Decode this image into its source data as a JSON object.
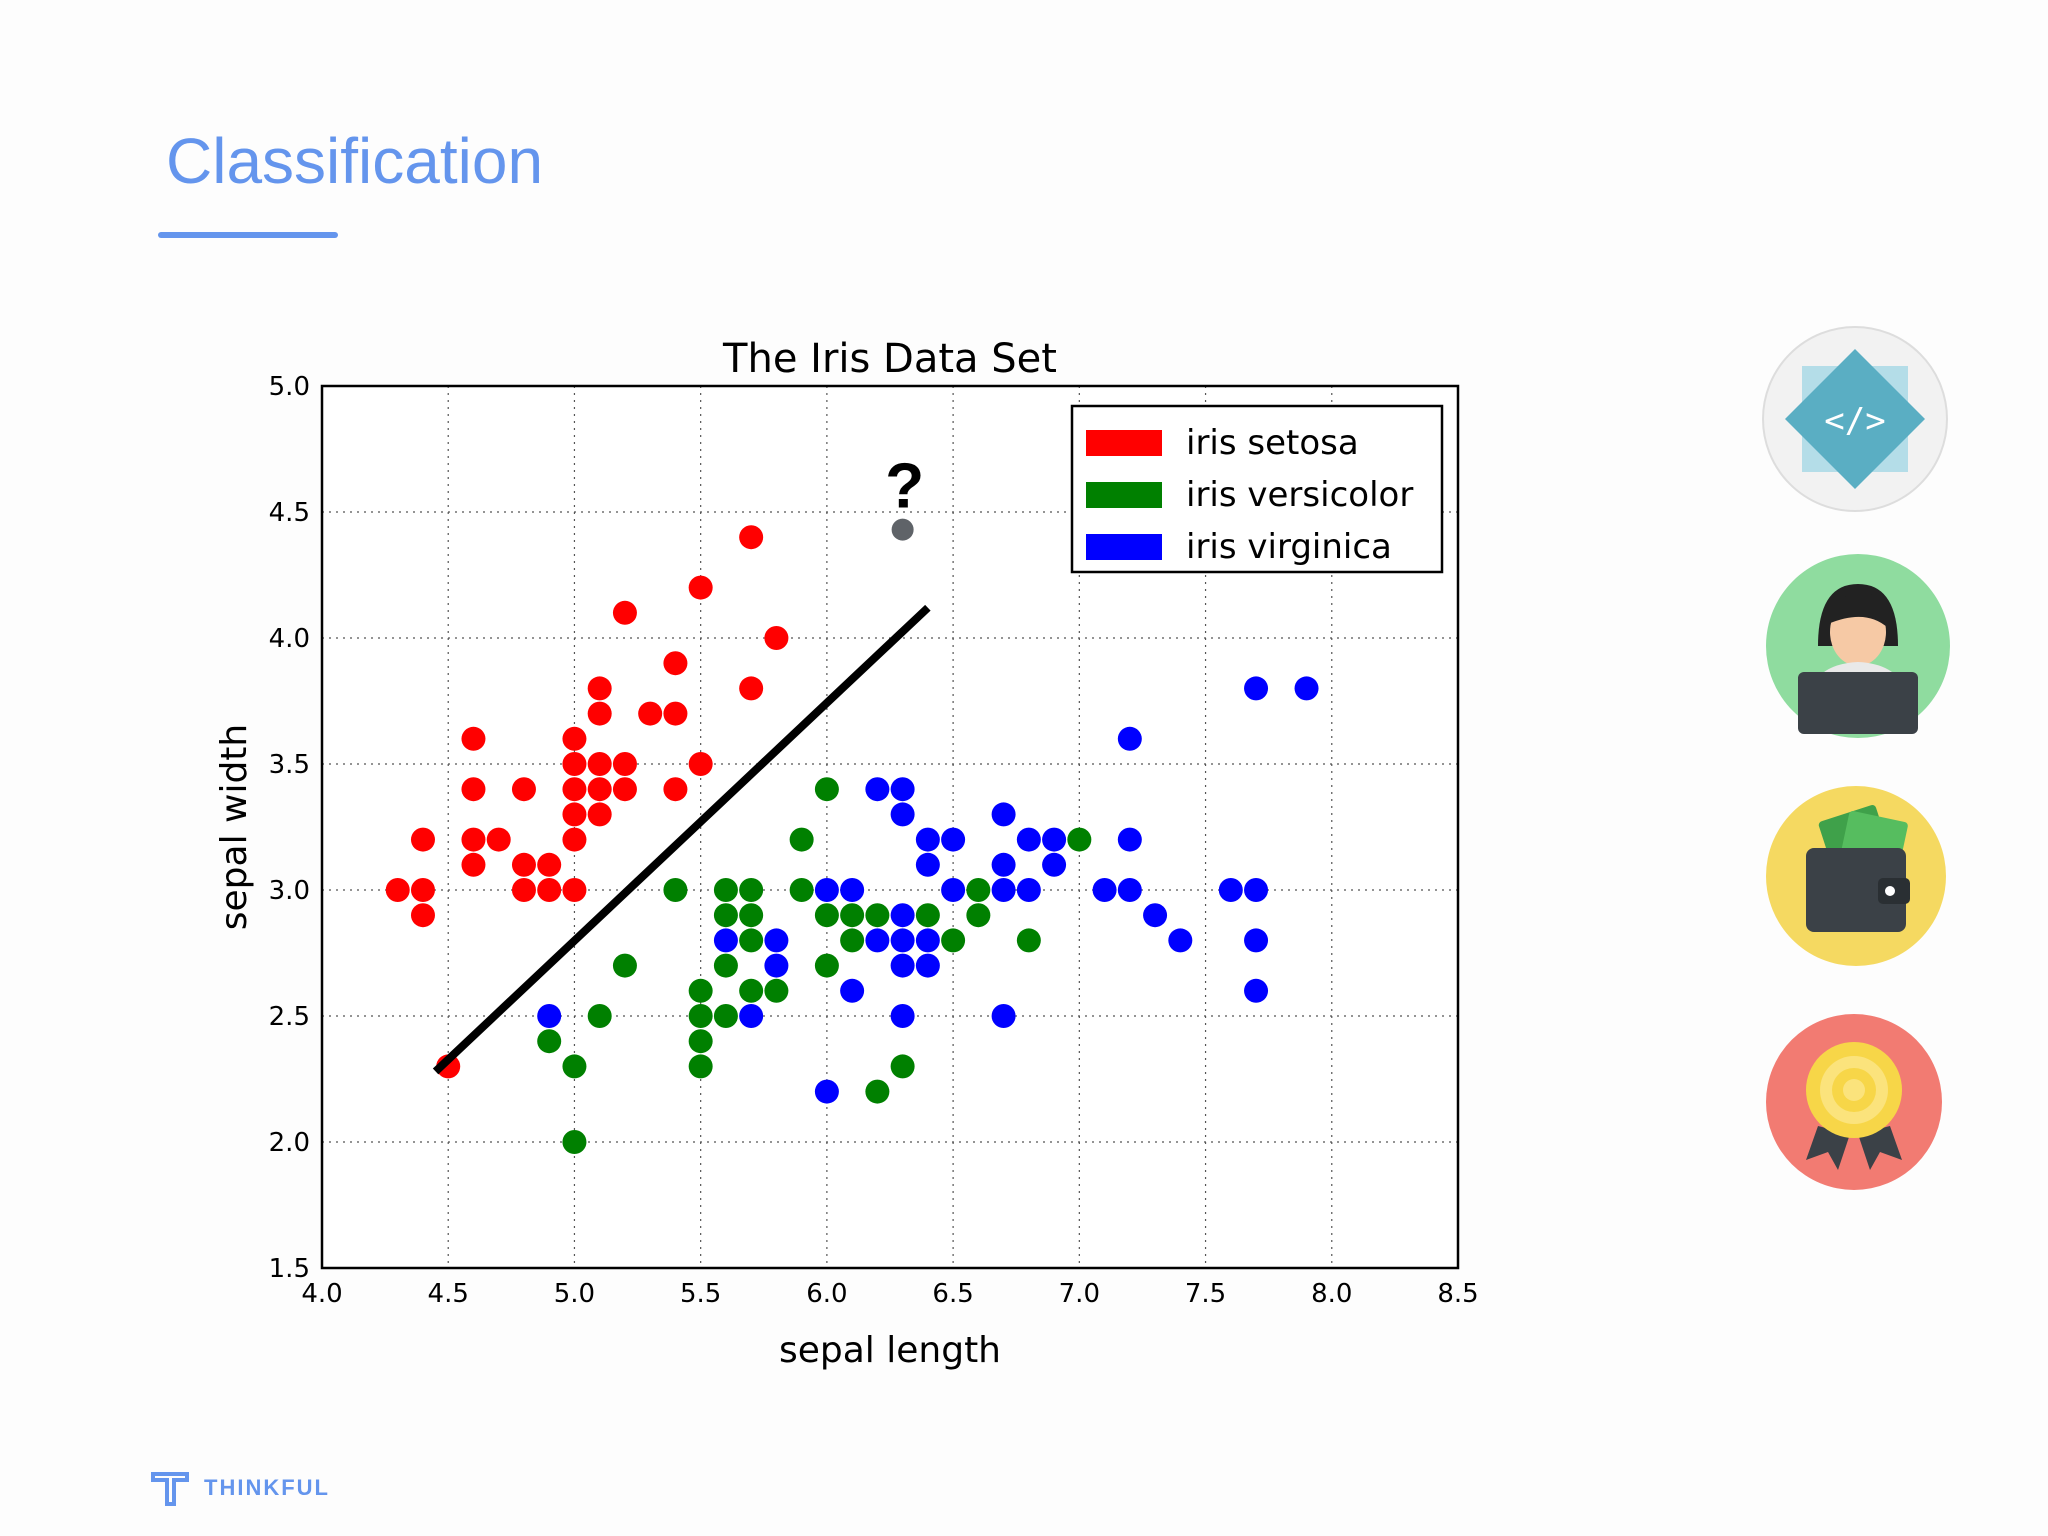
{
  "slide": {
    "title": "Classification",
    "brand": "THINKFUL",
    "accent_color": "#6495ed"
  },
  "side_icons": [
    {
      "name": "code-icon",
      "bg": "#f2f2f2"
    },
    {
      "name": "person-laptop-icon",
      "bg": "#8fdc9f"
    },
    {
      "name": "wallet-icon",
      "bg": "#f5d961"
    },
    {
      "name": "award-ribbon-icon",
      "bg": "#f27b72"
    }
  ],
  "chart_data": {
    "type": "scatter",
    "title": "The Iris Data Set",
    "xlabel": "sepal length",
    "ylabel": "sepal width",
    "xlim": [
      4.0,
      8.5
    ],
    "ylim": [
      1.5,
      5.0
    ],
    "x_ticks": [
      "4.0",
      "4.5",
      "5.0",
      "5.5",
      "6.0",
      "6.5",
      "7.0",
      "7.5",
      "8.0",
      "8.5"
    ],
    "y_ticks": [
      "1.5",
      "2.0",
      "2.5",
      "3.0",
      "3.5",
      "4.0",
      "4.5",
      "5.0"
    ],
    "grid": true,
    "legend_position": "top-right",
    "series": [
      {
        "name": "iris setosa",
        "color": "#ff0000",
        "points": [
          [
            4.3,
            3.0
          ],
          [
            4.4,
            2.9
          ],
          [
            4.4,
            3.0
          ],
          [
            4.4,
            3.2
          ],
          [
            4.5,
            2.3
          ],
          [
            4.6,
            3.1
          ],
          [
            4.6,
            3.2
          ],
          [
            4.6,
            3.4
          ],
          [
            4.6,
            3.6
          ],
          [
            4.7,
            3.2
          ],
          [
            4.8,
            3.0
          ],
          [
            4.8,
            3.4
          ],
          [
            4.8,
            3.1
          ],
          [
            4.9,
            3.0
          ],
          [
            4.9,
            3.1
          ],
          [
            5.0,
            3.0
          ],
          [
            5.0,
            3.2
          ],
          [
            5.0,
            3.3
          ],
          [
            5.0,
            3.4
          ],
          [
            5.0,
            3.5
          ],
          [
            5.0,
            3.6
          ],
          [
            5.1,
            3.3
          ],
          [
            5.1,
            3.4
          ],
          [
            5.1,
            3.5
          ],
          [
            5.1,
            3.7
          ],
          [
            5.1,
            3.8
          ],
          [
            5.2,
            3.4
          ],
          [
            5.2,
            3.5
          ],
          [
            5.2,
            4.1
          ],
          [
            5.3,
            3.7
          ],
          [
            5.4,
            3.4
          ],
          [
            5.4,
            3.7
          ],
          [
            5.4,
            3.9
          ],
          [
            5.5,
            3.5
          ],
          [
            5.5,
            4.2
          ],
          [
            5.7,
            3.8
          ],
          [
            5.7,
            4.4
          ],
          [
            5.8,
            4.0
          ]
        ]
      },
      {
        "name": "iris versicolor",
        "color": "#008000",
        "points": [
          [
            4.9,
            2.4
          ],
          [
            5.0,
            2.0
          ],
          [
            5.0,
            2.3
          ],
          [
            5.1,
            2.5
          ],
          [
            5.2,
            2.7
          ],
          [
            5.4,
            3.0
          ],
          [
            5.5,
            2.3
          ],
          [
            5.5,
            2.4
          ],
          [
            5.5,
            2.5
          ],
          [
            5.5,
            2.6
          ],
          [
            5.6,
            2.5
          ],
          [
            5.6,
            2.7
          ],
          [
            5.6,
            2.9
          ],
          [
            5.6,
            3.0
          ],
          [
            5.7,
            2.6
          ],
          [
            5.7,
            2.8
          ],
          [
            5.7,
            2.9
          ],
          [
            5.7,
            3.0
          ],
          [
            5.8,
            2.6
          ],
          [
            5.9,
            3.0
          ],
          [
            5.9,
            3.2
          ],
          [
            6.0,
            2.7
          ],
          [
            6.0,
            2.9
          ],
          [
            6.0,
            3.4
          ],
          [
            6.1,
            2.8
          ],
          [
            6.1,
            2.9
          ],
          [
            6.2,
            2.2
          ],
          [
            6.2,
            2.9
          ],
          [
            6.3,
            2.3
          ],
          [
            6.4,
            2.9
          ],
          [
            6.5,
            2.8
          ],
          [
            6.6,
            2.9
          ],
          [
            6.6,
            3.0
          ],
          [
            6.8,
            2.8
          ],
          [
            7.0,
            3.2
          ]
        ]
      },
      {
        "name": "iris virginica",
        "color": "#0000ff",
        "points": [
          [
            4.9,
            2.5
          ],
          [
            5.7,
            2.5
          ],
          [
            5.6,
            2.8
          ],
          [
            5.8,
            2.7
          ],
          [
            5.8,
            2.8
          ],
          [
            6.0,
            2.2
          ],
          [
            6.0,
            3.0
          ],
          [
            6.1,
            2.6
          ],
          [
            6.1,
            3.0
          ],
          [
            6.2,
            2.8
          ],
          [
            6.2,
            3.4
          ],
          [
            6.3,
            2.5
          ],
          [
            6.3,
            2.7
          ],
          [
            6.3,
            2.8
          ],
          [
            6.3,
            2.9
          ],
          [
            6.3,
            3.3
          ],
          [
            6.3,
            3.4
          ],
          [
            6.4,
            2.7
          ],
          [
            6.4,
            2.8
          ],
          [
            6.4,
            3.1
          ],
          [
            6.4,
            3.2
          ],
          [
            6.5,
            3.0
          ],
          [
            6.5,
            3.2
          ],
          [
            6.7,
            2.5
          ],
          [
            6.7,
            3.0
          ],
          [
            6.7,
            3.1
          ],
          [
            6.7,
            3.3
          ],
          [
            6.8,
            3.0
          ],
          [
            6.8,
            3.2
          ],
          [
            6.9,
            3.1
          ],
          [
            6.9,
            3.2
          ],
          [
            7.1,
            3.0
          ],
          [
            7.2,
            3.0
          ],
          [
            7.2,
            3.2
          ],
          [
            7.2,
            3.6
          ],
          [
            7.3,
            2.9
          ],
          [
            7.4,
            2.8
          ],
          [
            7.6,
            3.0
          ],
          [
            7.7,
            2.6
          ],
          [
            7.7,
            2.8
          ],
          [
            7.7,
            3.0
          ],
          [
            7.7,
            3.8
          ],
          [
            7.9,
            3.8
          ]
        ]
      }
    ],
    "unknown_point": {
      "x": 6.3,
      "y": 4.43,
      "label": "?",
      "color": "#5f6368"
    },
    "decision_line": {
      "x1": 4.45,
      "y1": 2.28,
      "x2": 6.4,
      "y2": 4.12,
      "color": "#000000"
    }
  }
}
